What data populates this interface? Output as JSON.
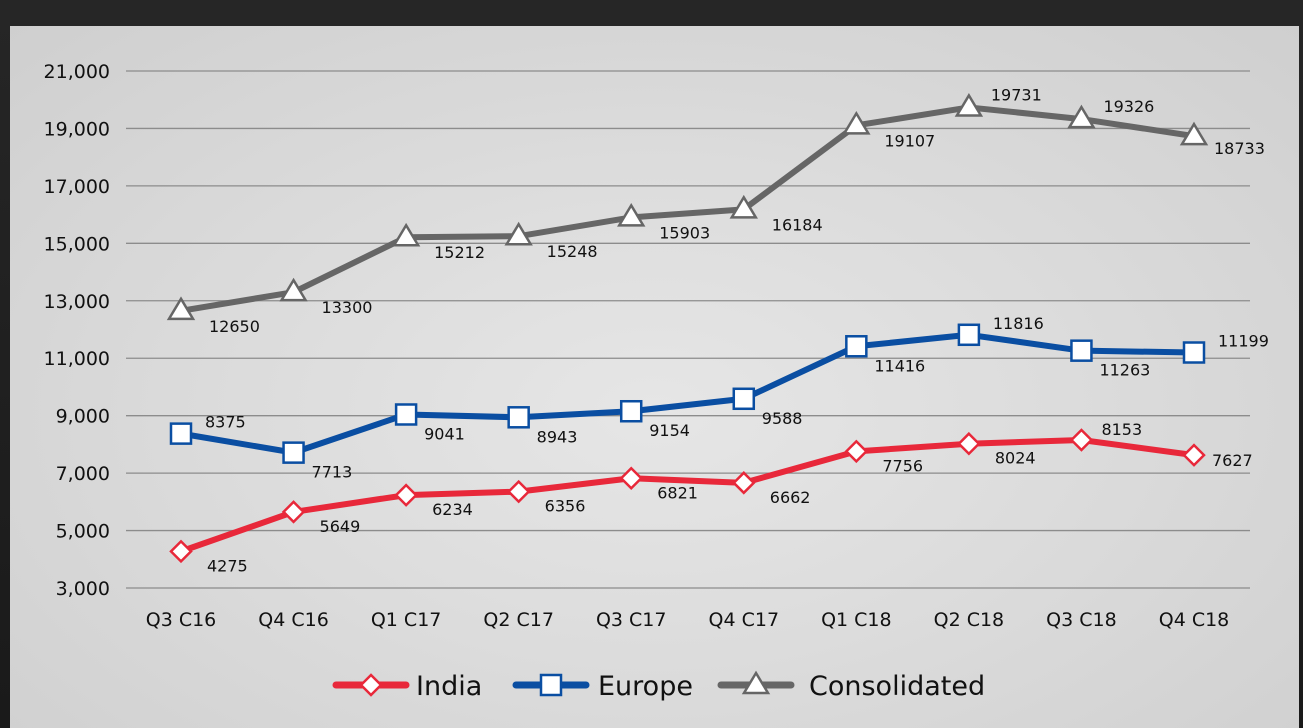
{
  "chart_data": {
    "type": "line",
    "categories": [
      "Q3 C16",
      "Q4 C16",
      "Q1 C17",
      "Q2 C17",
      "Q3 C17",
      "Q4 C17",
      "Q1 C18",
      "Q2 C18",
      "Q3 C18",
      "Q4 C18"
    ],
    "yticks": [
      "21,000",
      "19,000",
      "17,000",
      "15,000",
      "13,000",
      "11,000",
      "9,000",
      "7,000",
      "5,000",
      "3,000"
    ],
    "ylim": [
      3000,
      21000
    ],
    "grid": true,
    "legend_position": "bottom",
    "series": [
      {
        "name": "India",
        "marker": "diamond",
        "color": "#e8283a",
        "values": [
          4275,
          5649,
          6234,
          6356,
          6821,
          6662,
          7756,
          8024,
          8153,
          7627
        ]
      },
      {
        "name": "Europe",
        "marker": "square",
        "color": "#0a4ea2",
        "values": [
          8375,
          7713,
          9041,
          8943,
          9154,
          9588,
          11416,
          11816,
          11263,
          11199
        ]
      },
      {
        "name": "Consolidated",
        "marker": "triangle",
        "color": "#666666",
        "values": [
          12650,
          13300,
          15212,
          15248,
          15903,
          16184,
          19107,
          19731,
          19326,
          18733
        ]
      }
    ]
  }
}
